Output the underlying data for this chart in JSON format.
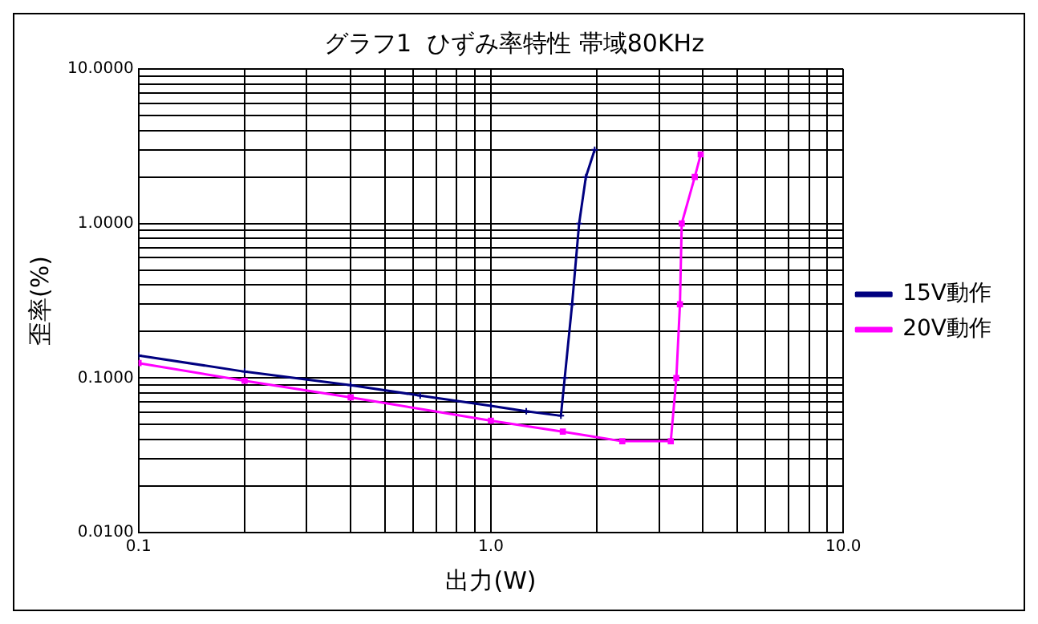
{
  "chart_data": {
    "type": "line",
    "title": "グラフ1  ひずみ率特性 帯域80KHz",
    "xlabel": "出力(W)",
    "ylabel": "歪率(%)",
    "log": "xy",
    "grid": true,
    "legend": "right",
    "line_style": "solid",
    "xlim": [
      0.1,
      10
    ],
    "ylim": [
      0.01,
      10
    ],
    "xticks": [
      {
        "value": 0.1,
        "label": "0.1"
      },
      {
        "value": 0.2,
        "label": null
      },
      {
        "value": 0.3,
        "label": null
      },
      {
        "value": 0.4,
        "label": null
      },
      {
        "value": 0.5,
        "label": null
      },
      {
        "value": 0.6,
        "label": null
      },
      {
        "value": 0.7,
        "label": null
      },
      {
        "value": 0.8,
        "label": null
      },
      {
        "value": 0.9,
        "label": null
      },
      {
        "value": 1,
        "label": "1.0"
      },
      {
        "value": 2,
        "label": null
      },
      {
        "value": 3,
        "label": null
      },
      {
        "value": 4,
        "label": null
      },
      {
        "value": 5,
        "label": null
      },
      {
        "value": 6,
        "label": null
      },
      {
        "value": 7,
        "label": null
      },
      {
        "value": 8,
        "label": null
      },
      {
        "value": 9,
        "label": null
      },
      {
        "value": 10,
        "label": "10.0"
      }
    ],
    "yticks": [
      {
        "value": 0.01,
        "label": "0.0100"
      },
      {
        "value": 0.02,
        "label": null
      },
      {
        "value": 0.03,
        "label": null
      },
      {
        "value": 0.04,
        "label": null
      },
      {
        "value": 0.05,
        "label": null
      },
      {
        "value": 0.06,
        "label": null
      },
      {
        "value": 0.07,
        "label": null
      },
      {
        "value": 0.08,
        "label": null
      },
      {
        "value": 0.09,
        "label": null
      },
      {
        "value": 0.1,
        "label": "0.1000"
      },
      {
        "value": 0.2,
        "label": null
      },
      {
        "value": 0.3,
        "label": null
      },
      {
        "value": 0.4,
        "label": null
      },
      {
        "value": 0.5,
        "label": null
      },
      {
        "value": 0.6,
        "label": null
      },
      {
        "value": 0.7,
        "label": null
      },
      {
        "value": 0.8,
        "label": null
      },
      {
        "value": 0.9,
        "label": null
      },
      {
        "value": 1,
        "label": "1.0000"
      },
      {
        "value": 2,
        "label": null
      },
      {
        "value": 3,
        "label": null
      },
      {
        "value": 4,
        "label": null
      },
      {
        "value": 5,
        "label": null
      },
      {
        "value": 6,
        "label": null
      },
      {
        "value": 7,
        "label": null
      },
      {
        "value": 8,
        "label": null
      },
      {
        "value": 9,
        "label": null
      },
      {
        "value": 10,
        "label": "10.0000"
      }
    ],
    "series": [
      {
        "name": "15V動作",
        "color": "#000080",
        "marker": "cross",
        "x": [
          0.1,
          0.2,
          0.4,
          0.63,
          1.0,
          1.26,
          1.58,
          1.62,
          1.7,
          1.78,
          1.86,
          1.97
        ],
        "values": [
          0.14,
          0.11,
          0.09,
          0.077,
          0.066,
          0.061,
          0.057,
          0.1,
          0.3,
          1.0,
          2.0,
          3.0
        ]
      },
      {
        "name": "20V動作",
        "color": "#ff00ff",
        "marker": "square",
        "x": [
          0.1,
          0.2,
          0.4,
          1.0,
          1.6,
          2.36,
          3.24,
          3.36,
          3.44,
          3.48,
          3.79,
          3.94
        ],
        "values": [
          0.125,
          0.096,
          0.075,
          0.053,
          0.045,
          0.039,
          0.039,
          0.1,
          0.3,
          1.0,
          2.0,
          2.8
        ]
      }
    ]
  }
}
